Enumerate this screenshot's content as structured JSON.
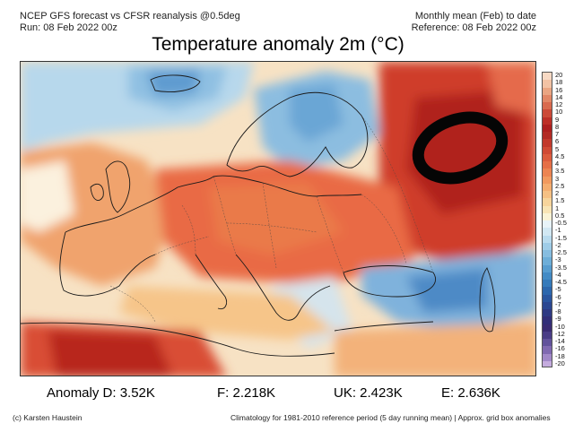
{
  "header": {
    "left_line1": "NCEP GFS forecast vs CFSR reanalysis @0.5deg",
    "left_line2": "Run: 08 Feb 2022 00z",
    "right_line1": "Monthly mean (Feb) to date",
    "right_line2": "Reference: 08 Feb 2022 00z"
  },
  "title": "Temperature anomaly 2m (°C)",
  "colorbar": {
    "labels": [
      "20",
      "18",
      "16",
      "14",
      "12",
      "10",
      "9",
      "8",
      "7",
      "6",
      "5",
      "4.5",
      "4",
      "3.5",
      "3",
      "2.5",
      "2",
      "1.5",
      "1",
      "0.5",
      "-0.5",
      "-1",
      "-1.5",
      "-2",
      "-2.5",
      "-3",
      "-3.5",
      "-4",
      "-4.5",
      "-5",
      "-6",
      "-7",
      "-8",
      "-9",
      "-10",
      "-12",
      "-14",
      "-16",
      "-18",
      "-20"
    ],
    "colors": [
      "#f7d9c4",
      "#f2c2a4",
      "#eaa582",
      "#e28766",
      "#d96a4e",
      "#cc4a38",
      "#bd2f27",
      "#ad1f1f",
      "#b22a24",
      "#c2392c",
      "#d04a35",
      "#dc5c3e",
      "#e56f47",
      "#ec8451",
      "#f1995e",
      "#f4ad6f",
      "#f6c083",
      "#f7d49b",
      "#f8e4b5",
      "#faf3d6",
      "#e8f3f8",
      "#d2e8f3",
      "#b9dbee",
      "#9fcce7",
      "#86bde0",
      "#6daed8",
      "#579dcf",
      "#438bc5",
      "#357aba",
      "#2c67ad",
      "#2a569f",
      "#2b4791",
      "#2e3a83",
      "#322f78",
      "#3a2c73",
      "#4a3d86",
      "#62529b",
      "#8069b1",
      "#a188c8",
      "#c4abde"
    ]
  },
  "stats": {
    "anomaly_d": "Anomaly D: 3.52K",
    "f": "F: 2.218K",
    "uk": "UK: 2.423K",
    "e": "E: 2.636K"
  },
  "footer": {
    "left": "(c) Karsten Haustein",
    "right": "Climatology for 1981-2010 reference period (5 day running mean) | Approx. grid box anomalies"
  }
}
